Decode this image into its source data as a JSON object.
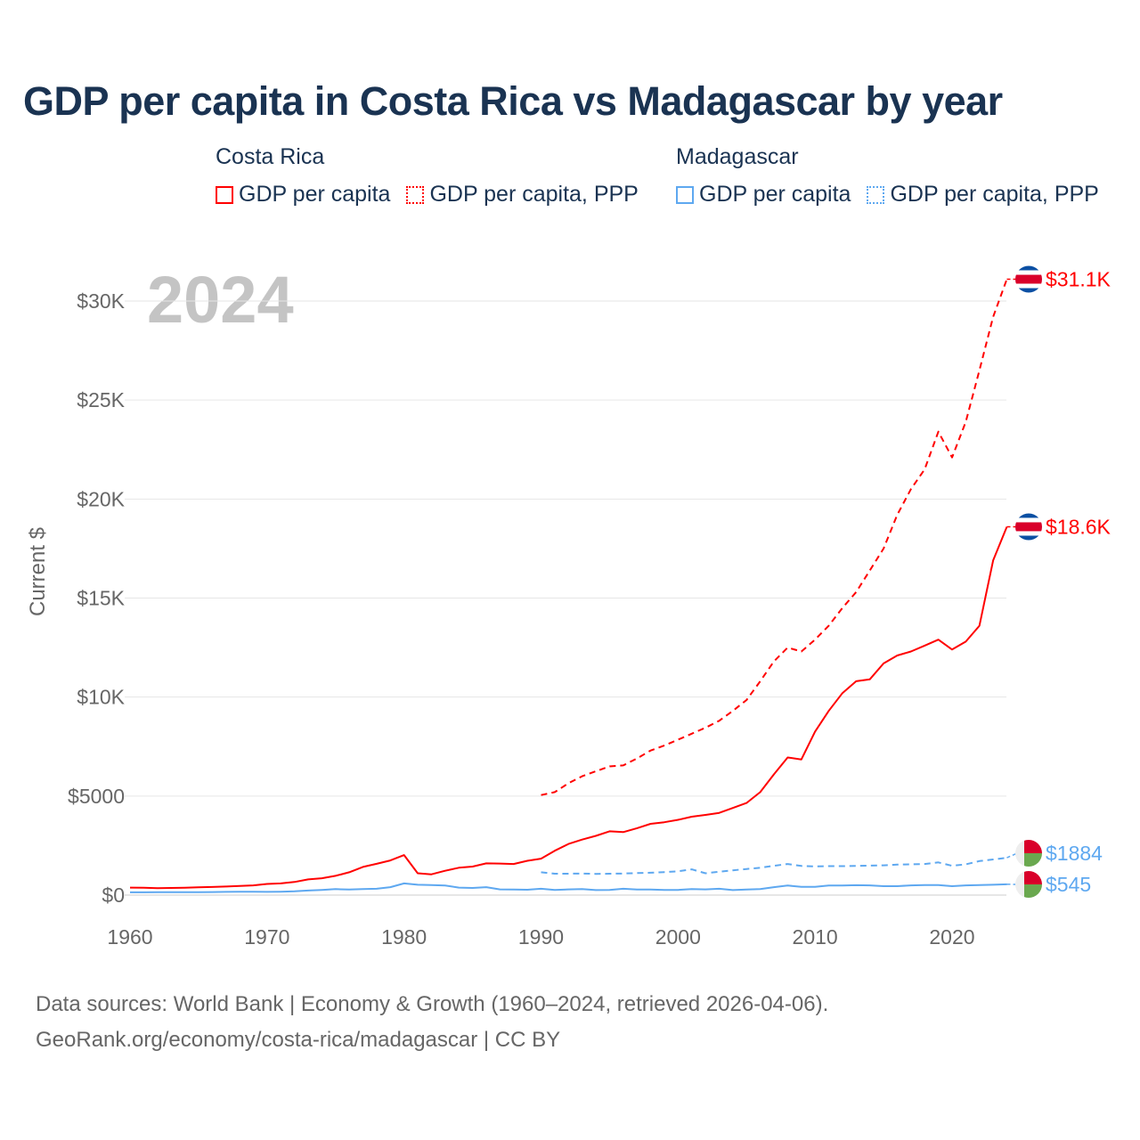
{
  "title": "GDP per capita in Costa Rica vs Madagascar by year",
  "legend": {
    "groups": [
      {
        "name": "Costa Rica",
        "items": [
          {
            "label": "GDP per capita",
            "style": "solid",
            "color": "#ff0000"
          },
          {
            "label": "GDP per capita, PPP",
            "style": "dotted",
            "color": "#ff0000"
          }
        ]
      },
      {
        "name": "Madagascar",
        "items": [
          {
            "label": "GDP per capita",
            "style": "solid",
            "color": "#5ea8f0"
          },
          {
            "label": "GDP per capita, PPP",
            "style": "dotted",
            "color": "#5ea8f0"
          }
        ]
      }
    ]
  },
  "year_label": "2024",
  "footer": {
    "line1": "Data sources: World Bank | Economy & Growth (1960–2024, retrieved 2026-04-06).",
    "line2": "GeoRank.org/economy/costa-rica/madagascar | CC BY"
  },
  "chart_data": {
    "type": "line",
    "title": "GDP per capita in Costa Rica vs Madagascar by year",
    "xlabel": "",
    "ylabel": "Current $",
    "xlim": [
      1960,
      2024
    ],
    "ylim": [
      0,
      32000
    ],
    "grid": true,
    "x_ticks": [
      1960,
      1970,
      1980,
      1990,
      2000,
      2010,
      2020
    ],
    "x_tick_labels": [
      "1960",
      "1970",
      "1980",
      "1990",
      "2000",
      "2010",
      "2020"
    ],
    "y_ticks": [
      0,
      5000,
      10000,
      15000,
      20000,
      25000,
      30000
    ],
    "y_tick_labels": [
      "$0",
      "$5000",
      "$10K",
      "$15K",
      "$20K",
      "$25K",
      "$30K"
    ],
    "series": [
      {
        "name": "Costa Rica GDP per capita",
        "color": "#ff0000",
        "dash": "solid",
        "start": 1960,
        "end_label": "$18.6K",
        "flag": "costa-rica",
        "values": [
          380,
          370,
          350,
          360,
          370,
          390,
          410,
          430,
          460,
          490,
          560,
          590,
          660,
          790,
          850,
          970,
          1150,
          1420,
          1580,
          1750,
          2020,
          1100,
          1050,
          1230,
          1380,
          1440,
          1600,
          1590,
          1570,
          1730,
          1840,
          2240,
          2580,
          2800,
          2990,
          3220,
          3180,
          3380,
          3600,
          3680,
          3800,
          3960,
          4050,
          4150,
          4400,
          4650,
          5200,
          6100,
          6950,
          6850,
          8250,
          9300,
          10200,
          10800,
          10900,
          11700,
          12100,
          12300,
          12600,
          12900,
          12400,
          12800,
          13600,
          16900,
          18600
        ]
      },
      {
        "name": "Costa Rica GDP per capita, PPP",
        "color": "#ff0000",
        "dash": "dashed",
        "start": 1990,
        "end_label": "$31.1K",
        "flag": "costa-rica",
        "values": [
          5050,
          5200,
          5650,
          6000,
          6250,
          6500,
          6550,
          6900,
          7300,
          7550,
          7850,
          8150,
          8450,
          8800,
          9300,
          9850,
          10800,
          11800,
          12500,
          12300,
          12900,
          13600,
          14500,
          15300,
          16400,
          17500,
          19200,
          20500,
          21500,
          23400,
          22100,
          23900,
          26500,
          29200,
          31100
        ]
      },
      {
        "name": "Madagascar GDP per capita",
        "color": "#5ea8f0",
        "dash": "solid",
        "start": 1960,
        "end_label": "$545",
        "flag": "madagascar",
        "values": [
          140,
          140,
          145,
          145,
          148,
          150,
          155,
          160,
          165,
          170,
          160,
          170,
          190,
          230,
          260,
          300,
          280,
          300,
          320,
          400,
          590,
          520,
          510,
          480,
          380,
          360,
          400,
          290,
          280,
          270,
          320,
          260,
          290,
          300,
          250,
          260,
          320,
          280,
          280,
          260,
          260,
          300,
          290,
          320,
          250,
          280,
          300,
          400,
          480,
          420,
          420,
          480,
          480,
          500,
          490,
          450,
          450,
          490,
          510,
          510,
          450,
          490,
          510,
          520,
          545
        ]
      },
      {
        "name": "Madagascar GDP per capita, PPP",
        "color": "#5ea8f0",
        "dash": "dashed",
        "start": 1990,
        "end_label": "$1884",
        "flag": "madagascar",
        "values": [
          1150,
          1080,
          1080,
          1090,
          1070,
          1080,
          1090,
          1110,
          1130,
          1160,
          1200,
          1300,
          1100,
          1180,
          1250,
          1320,
          1380,
          1480,
          1570,
          1470,
          1450,
          1460,
          1460,
          1470,
          1490,
          1500,
          1540,
          1550,
          1570,
          1650,
          1480,
          1550,
          1720,
          1800,
          1884
        ]
      }
    ]
  }
}
